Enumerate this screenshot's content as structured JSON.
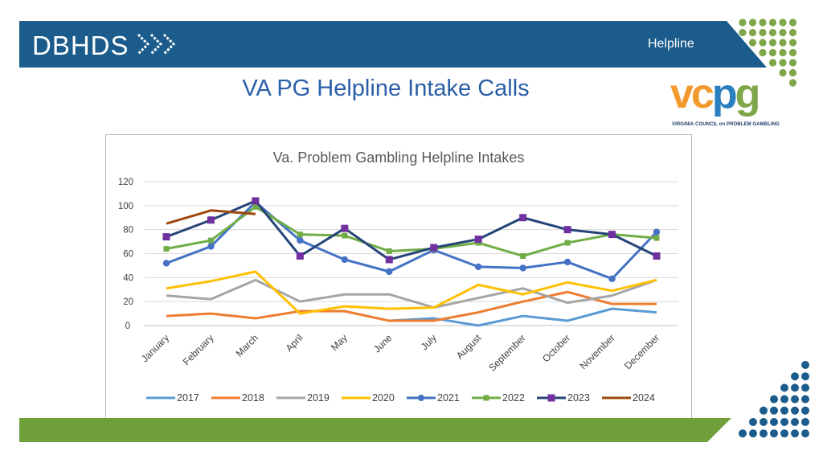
{
  "header": {
    "logo": "DBHDS",
    "tag": "Helpline"
  },
  "slide": {
    "title": "VA PG Helpline Intake Calls",
    "vcpg_logo": "vcpg",
    "vcpg_subtitle": "VIRGINIA COUNCIL on PROBLEM GAMBLING"
  },
  "colors": {
    "banner": "#1b5c8c",
    "footer": "#6f9f3a",
    "dots_green": "#7fa648",
    "dots_blue": "#1b5c8c"
  },
  "chart_data": {
    "type": "line",
    "title": "Va. Problem Gambling Helpline Intakes",
    "categories": [
      "January",
      "February",
      "March",
      "April",
      "May",
      "June",
      "July",
      "August",
      "September",
      "October",
      "November",
      "December"
    ],
    "ylim": [
      0,
      120
    ],
    "yticks": [
      0,
      20,
      40,
      60,
      80,
      100,
      120
    ],
    "grid": true,
    "legend": "bottom",
    "series": [
      {
        "name": "2017",
        "color": "#5b9bd5",
        "marker": "none",
        "values": [
          null,
          null,
          null,
          null,
          null,
          4,
          6,
          0,
          8,
          4,
          14,
          11
        ]
      },
      {
        "name": "2018",
        "color": "#ed7d31",
        "marker": "none",
        "values": [
          8,
          10,
          6,
          12,
          12,
          4,
          4,
          11,
          20,
          28,
          18,
          18
        ]
      },
      {
        "name": "2019",
        "color": "#a5a5a5",
        "marker": "none",
        "values": [
          25,
          22,
          38,
          20,
          26,
          26,
          15,
          23,
          31,
          19,
          25,
          38
        ]
      },
      {
        "name": "2020",
        "color": "#ffc000",
        "marker": "none",
        "values": [
          31,
          37,
          45,
          10,
          16,
          14,
          15,
          34,
          26,
          36,
          29,
          38
        ]
      },
      {
        "name": "2021",
        "color": "#4472c4",
        "marker": "circle",
        "values": [
          52,
          66,
          103,
          71,
          55,
          45,
          63,
          49,
          48,
          53,
          39,
          78
        ]
      },
      {
        "name": "2022",
        "color": "#70ad47",
        "marker": "square",
        "values": [
          64,
          71,
          99,
          76,
          75,
          62,
          64,
          69,
          58,
          69,
          76,
          73
        ]
      },
      {
        "name": "2023",
        "color": "#264478",
        "marker": "square",
        "markerColor": "#7030a0",
        "values": [
          74,
          88,
          104,
          58,
          81,
          55,
          65,
          72,
          90,
          80,
          76,
          58
        ]
      },
      {
        "name": "2024",
        "color": "#9e480e",
        "marker": "none",
        "values": [
          85,
          96,
          93,
          null,
          null,
          null,
          null,
          null,
          null,
          null,
          null,
          null
        ]
      }
    ]
  }
}
